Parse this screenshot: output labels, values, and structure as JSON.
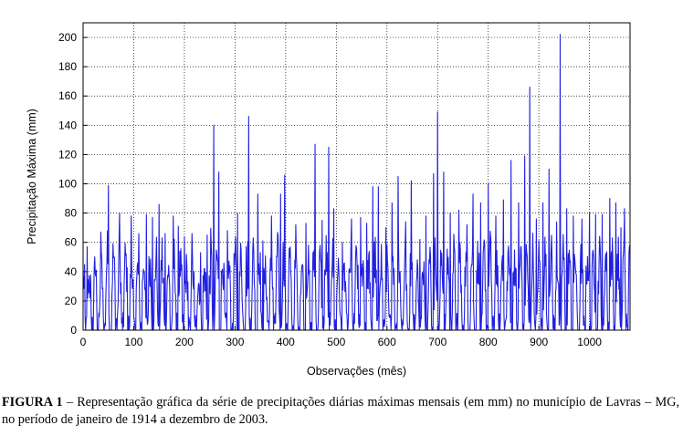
{
  "chart_data": {
    "type": "line",
    "xlabel": "Observações (mês)",
    "ylabel": "Precipitação Máxima (mm)",
    "xlim": [
      0,
      1080
    ],
    "ylim": [
      0,
      210
    ],
    "x_ticks": [
      0,
      100,
      200,
      300,
      400,
      500,
      600,
      700,
      800,
      900,
      1000
    ],
    "y_ticks": [
      0,
      20,
      40,
      60,
      80,
      100,
      120,
      140,
      160,
      180,
      200
    ],
    "grid": true,
    "line_color": "#2020e0",
    "n_observations": 1080,
    "peaks": [
      {
        "x": 8,
        "y": 57
      },
      {
        "x": 35,
        "y": 67
      },
      {
        "x": 50,
        "y": 99
      },
      {
        "x": 72,
        "y": 80
      },
      {
        "x": 95,
        "y": 78
      },
      {
        "x": 110,
        "y": 66
      },
      {
        "x": 125,
        "y": 79
      },
      {
        "x": 137,
        "y": 77
      },
      {
        "x": 150,
        "y": 86
      },
      {
        "x": 162,
        "y": 66
      },
      {
        "x": 178,
        "y": 78
      },
      {
        "x": 188,
        "y": 71
      },
      {
        "x": 200,
        "y": 64
      },
      {
        "x": 215,
        "y": 66
      },
      {
        "x": 232,
        "y": 53
      },
      {
        "x": 245,
        "y": 65
      },
      {
        "x": 258,
        "y": 140
      },
      {
        "x": 268,
        "y": 108
      },
      {
        "x": 285,
        "y": 68
      },
      {
        "x": 305,
        "y": 80
      },
      {
        "x": 322,
        "y": 57
      },
      {
        "x": 327,
        "y": 146
      },
      {
        "x": 345,
        "y": 93
      },
      {
        "x": 355,
        "y": 61
      },
      {
        "x": 372,
        "y": 78
      },
      {
        "x": 390,
        "y": 93
      },
      {
        "x": 398,
        "y": 106
      },
      {
        "x": 420,
        "y": 72
      },
      {
        "x": 440,
        "y": 73
      },
      {
        "x": 458,
        "y": 127
      },
      {
        "x": 472,
        "y": 75
      },
      {
        "x": 485,
        "y": 125
      },
      {
        "x": 495,
        "y": 83
      },
      {
        "x": 512,
        "y": 60
      },
      {
        "x": 530,
        "y": 76
      },
      {
        "x": 548,
        "y": 77
      },
      {
        "x": 560,
        "y": 73
      },
      {
        "x": 572,
        "y": 98
      },
      {
        "x": 583,
        "y": 98
      },
      {
        "x": 598,
        "y": 70
      },
      {
        "x": 610,
        "y": 87
      },
      {
        "x": 622,
        "y": 105
      },
      {
        "x": 637,
        "y": 74
      },
      {
        "x": 648,
        "y": 102
      },
      {
        "x": 665,
        "y": 62
      },
      {
        "x": 677,
        "y": 78
      },
      {
        "x": 692,
        "y": 107
      },
      {
        "x": 700,
        "y": 149
      },
      {
        "x": 712,
        "y": 108
      },
      {
        "x": 725,
        "y": 80
      },
      {
        "x": 742,
        "y": 82
      },
      {
        "x": 758,
        "y": 72
      },
      {
        "x": 770,
        "y": 93
      },
      {
        "x": 785,
        "y": 87
      },
      {
        "x": 800,
        "y": 100
      },
      {
        "x": 815,
        "y": 78
      },
      {
        "x": 830,
        "y": 89
      },
      {
        "x": 845,
        "y": 116
      },
      {
        "x": 860,
        "y": 87
      },
      {
        "x": 872,
        "y": 119
      },
      {
        "x": 882,
        "y": 166
      },
      {
        "x": 895,
        "y": 76
      },
      {
        "x": 908,
        "y": 87
      },
      {
        "x": 920,
        "y": 110
      },
      {
        "x": 935,
        "y": 74
      },
      {
        "x": 942,
        "y": 202
      },
      {
        "x": 955,
        "y": 83
      },
      {
        "x": 968,
        "y": 78
      },
      {
        "x": 985,
        "y": 76
      },
      {
        "x": 1000,
        "y": 80
      },
      {
        "x": 1012,
        "y": 79
      },
      {
        "x": 1025,
        "y": 79
      },
      {
        "x": 1040,
        "y": 90
      },
      {
        "x": 1052,
        "y": 87
      },
      {
        "x": 1062,
        "y": 70
      },
      {
        "x": 1069,
        "y": 83
      }
    ]
  },
  "caption": {
    "label": "FIGURA 1",
    "text": " – Representação gráfica da série de precipitações diárias máximas mensais (em mm) no município de Lavras – MG, no período de janeiro de 1914 a dezembro de 2003."
  }
}
